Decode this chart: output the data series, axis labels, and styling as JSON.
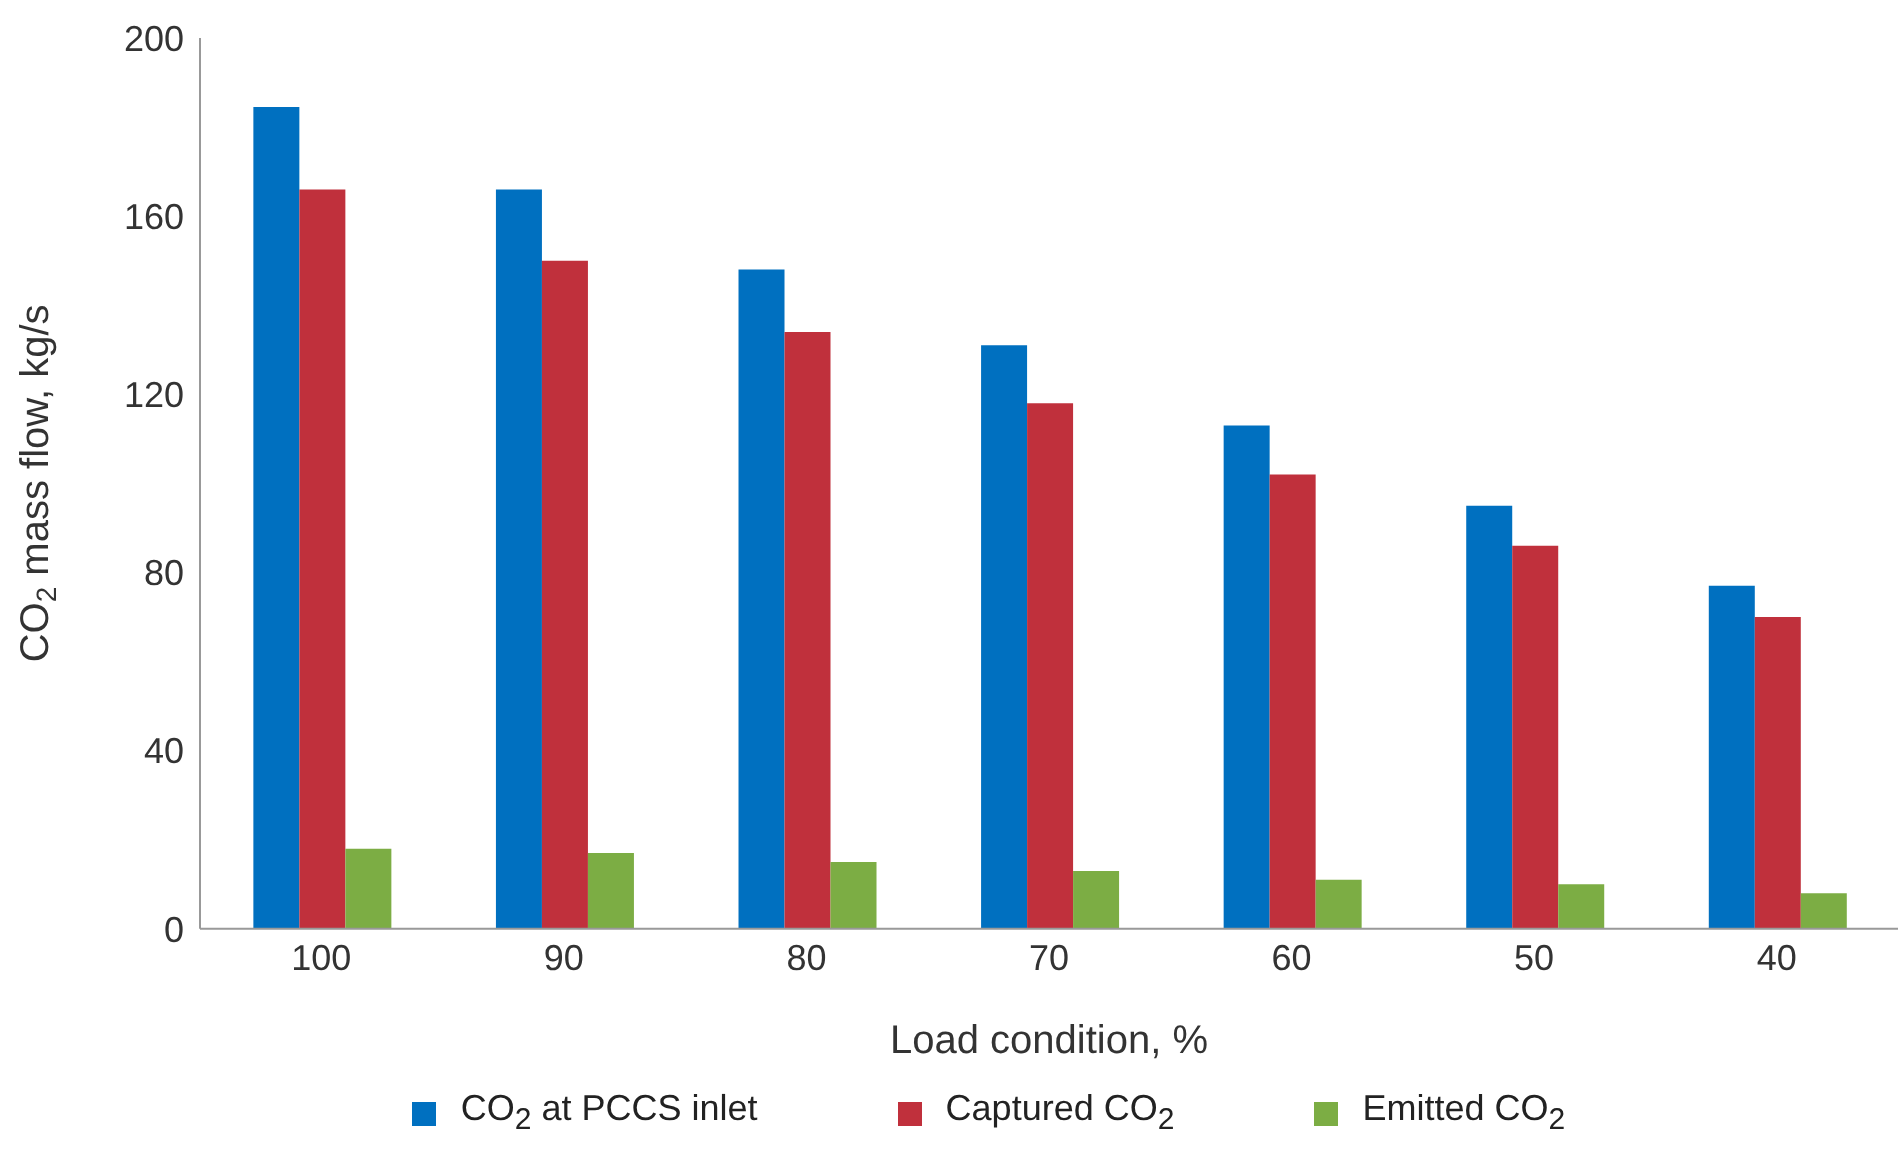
{
  "chart_data": {
    "type": "bar",
    "xlabel": "Load condition, %",
    "ylabel": "CO$_{2}$ mass flow, kg/s",
    "categories": [
      "100",
      "90",
      "80",
      "70",
      "60",
      "50",
      "40"
    ],
    "series": [
      {
        "name": "CO$_{2}$ at PCCS inlet",
        "color": "#0070c0",
        "values": [
          184.5,
          166,
          148,
          131,
          113,
          95,
          77
        ]
      },
      {
        "name": "Captured CO$_{2}$",
        "color": "#c0303c",
        "values": [
          166,
          150,
          134,
          118,
          102,
          86,
          70
        ]
      },
      {
        "name": "Emitted CO$_{2}$",
        "color": "#7cad44",
        "values": [
          18,
          17,
          15,
          13,
          11,
          10,
          8
        ]
      }
    ],
    "ylim": [
      0,
      200
    ],
    "yticks": [
      0,
      40,
      80,
      120,
      160,
      200
    ],
    "grid": false,
    "legend": "bottom"
  }
}
